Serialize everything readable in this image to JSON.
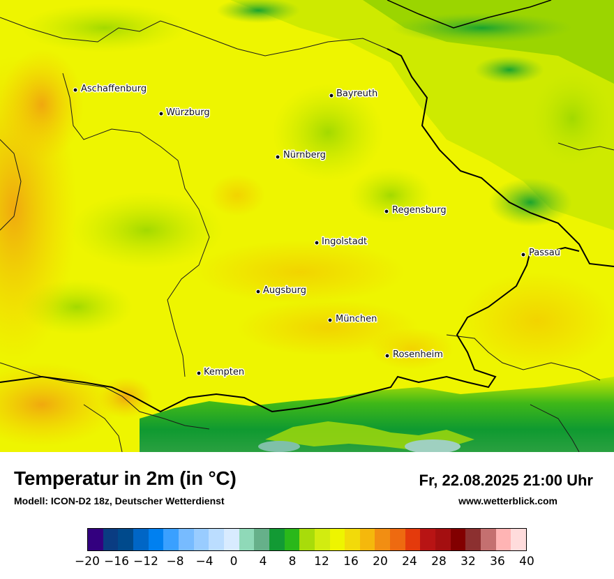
{
  "map": {
    "cities": [
      {
        "name": "Aschaffenburg"
      },
      {
        "name": "Würzburg"
      },
      {
        "name": "Bayreuth"
      },
      {
        "name": "Nürnberg"
      },
      {
        "name": "Regensburg"
      },
      {
        "name": "Ingolstadt"
      },
      {
        "name": "Passau"
      },
      {
        "name": "Augsburg"
      },
      {
        "name": "München"
      },
      {
        "name": "Rosenheim"
      },
      {
        "name": "Kempten"
      }
    ]
  },
  "footer": {
    "title": "Temperatur in 2m (in °C)",
    "model": "Modell: ICON-D2 18z, Deutscher Wetterdienst",
    "datetime": "Fr, 22.08.2025 21:00 Uhr",
    "website": "www.wetterblick.com"
  },
  "legend": {
    "colors": [
      "#33007f",
      "#0a3c82",
      "#004a8c",
      "#0066c6",
      "#0080f0",
      "#3aa0ff",
      "#77bbff",
      "#99ccff",
      "#bbddff",
      "#d8ebff",
      "#8fd9b8",
      "#66b08a",
      "#129a34",
      "#2ab81a",
      "#a8dc0a",
      "#d2ec10",
      "#eef500",
      "#f2da0a",
      "#f5b80c",
      "#f28e12",
      "#ee6a10",
      "#e43a0c",
      "#b81414",
      "#a40f10",
      "#820000",
      "#8c3030",
      "#c47070",
      "#ffb4b4",
      "#ffdcdc"
    ],
    "ticks": [
      "−20",
      "−16",
      "−12",
      "−8",
      "−4",
      "0",
      "4",
      "8",
      "12",
      "16",
      "20",
      "24",
      "28",
      "32",
      "36",
      "40"
    ]
  }
}
